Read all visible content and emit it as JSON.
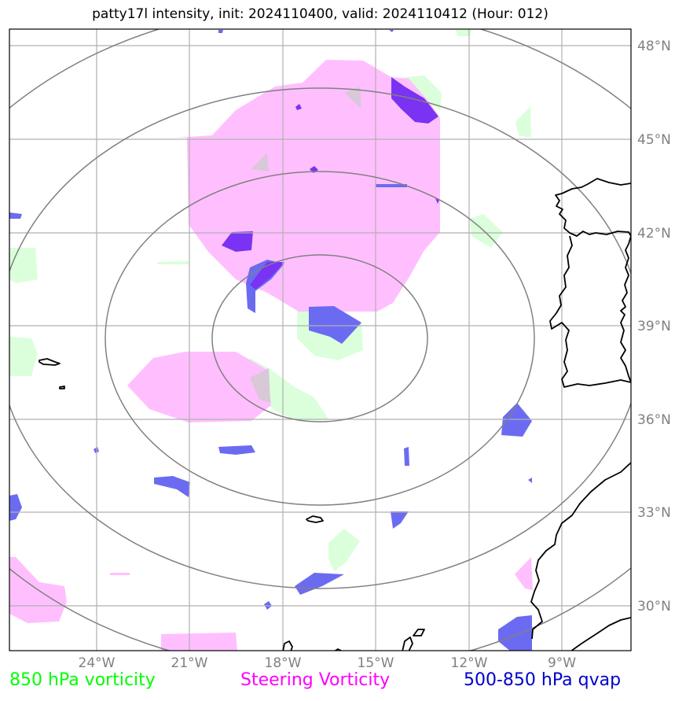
{
  "title": "patty17l intensity, init: 2024110400, valid: 2024110412 (Hour: 012)",
  "lat_labels": [
    "48°N",
    "45°N",
    "42°N",
    "39°N",
    "36°N",
    "33°N",
    "30°N"
  ],
  "lon_labels": [
    "24°W",
    "21°W",
    "18°W",
    "15°W",
    "12°W",
    "9°W"
  ],
  "legend": [
    {
      "label": "850 hPa vorticity",
      "color": "#00ff00"
    },
    {
      "label": "Steering Vorticity",
      "color": "#ff00ff"
    },
    {
      "label": "500-850 hPa qvap",
      "color": "#0000cc"
    }
  ],
  "colors": {
    "vorticity_850": "#d9ffd9",
    "steering_vorticity": "#ffbfff",
    "qvap": "#6b6bf2",
    "qvap_dark": "#7a33f2",
    "range_rings": "#808080",
    "grid": "#b0b0b0",
    "coastline": "#000000"
  },
  "map": {
    "lon_range": [
      "27°W",
      "7°W"
    ],
    "lat_range": [
      "28.5°N",
      "48.5°N"
    ],
    "storm_center": {
      "lon": "17°W",
      "lat": "38.8°N"
    }
  }
}
